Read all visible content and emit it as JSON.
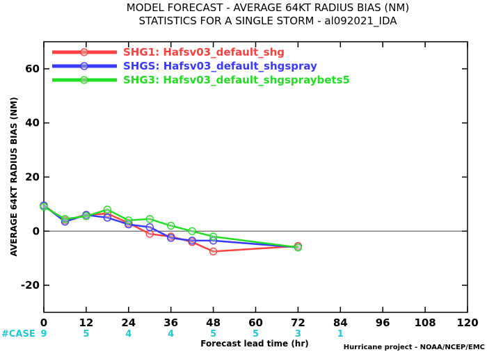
{
  "chart_data": {
    "type": "line",
    "title": "MODEL FORECAST - AVERAGE 64KT RADIUS BIAS (NM)",
    "subtitle": "STATISTICS FOR A SINGLE STORM - al092021_IDA",
    "xlabel": "Forecast lead time (hr)",
    "ylabel": "AVERAGE 64KT RADIUS BIAS (NM)",
    "xlim": [
      0,
      120
    ],
    "ylim": [
      -30,
      70
    ],
    "xticks": [
      0,
      12,
      24,
      36,
      48,
      60,
      72,
      84,
      96,
      108,
      120
    ],
    "xtick_labels": [
      "0",
      "12",
      "24",
      "36",
      "48",
      "60",
      "72",
      "84",
      "96",
      "108",
      "120"
    ],
    "yticks": [
      -20,
      0,
      20,
      40,
      60
    ],
    "ytick_labels": [
      "-20",
      "0",
      "20",
      "40",
      "60"
    ],
    "zero_line": true,
    "grid": false,
    "legend_position": "top-left",
    "series": [
      {
        "name": "SHG1: Hafsv03_default_shg",
        "color": "#ff4040",
        "x": [
          0,
          6,
          12,
          18,
          24,
          30,
          36,
          42,
          48,
          72
        ],
        "y": [
          9.5,
          4,
          6,
          6.5,
          3,
          -1,
          -2,
          -4,
          -7.5,
          -5.5
        ]
      },
      {
        "name": "SHGS: Hafsv03_default_shgspray",
        "color": "#3a3aff",
        "x": [
          0,
          6,
          12,
          18,
          24,
          30,
          36,
          42,
          48,
          72
        ],
        "y": [
          9.5,
          3.5,
          6,
          5,
          2.5,
          1.5,
          -2.5,
          -3.5,
          -3.5,
          -6
        ]
      },
      {
        "name": "SHG3: Hafsv03_default_shgspraybets5",
        "color": "#22dd22",
        "x": [
          0,
          6,
          12,
          18,
          24,
          30,
          36,
          42,
          48,
          72
        ],
        "y": [
          9,
          4.5,
          5.5,
          8,
          4,
          4.5,
          2,
          0,
          -2,
          -6
        ]
      }
    ],
    "case_label": "#CASE",
    "case_x": [
      0,
      12,
      24,
      36,
      48,
      60,
      72,
      84
    ],
    "case_counts": [
      "9",
      "5",
      "4",
      "4",
      "5",
      "5",
      "3",
      "1"
    ],
    "credit": "Hurricane project - NOAA/NCEP/EMC"
  }
}
